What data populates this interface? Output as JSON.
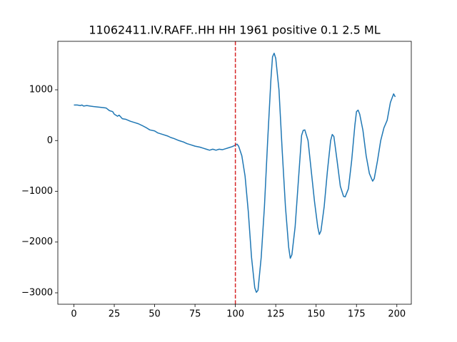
{
  "chart_data": {
    "type": "line",
    "title": "11062411.IV.RAFF..HH HH 1961 positive 0.1 2.5 ML",
    "x": [
      0,
      2,
      4,
      5,
      6,
      8,
      10,
      12,
      15,
      18,
      20,
      22,
      24,
      25,
      27,
      28,
      30,
      32,
      35,
      38,
      40,
      42,
      45,
      47,
      50,
      52,
      55,
      58,
      60,
      62,
      65,
      68,
      70,
      72,
      75,
      78,
      80,
      82,
      84,
      86,
      88,
      90,
      92,
      94,
      96,
      98,
      100,
      101,
      102,
      104,
      106,
      108,
      110,
      112,
      113,
      114,
      116,
      118,
      120,
      122,
      123,
      124,
      125,
      127,
      129,
      131,
      133,
      134,
      135,
      137,
      139,
      141,
      142,
      143,
      145,
      147,
      149,
      151,
      152,
      153,
      155,
      157,
      159,
      160,
      161,
      163,
      165,
      167,
      168,
      170,
      172,
      174,
      175,
      176,
      177,
      179,
      181,
      183,
      185,
      186,
      188,
      190,
      192,
      194,
      196,
      198,
      199
    ],
    "series": [
      {
        "color": "#1f77b4",
        "values": [
          700,
          700,
          690,
          700,
          680,
          690,
          680,
          670,
          660,
          650,
          640,
          590,
          570,
          520,
          480,
          500,
          430,
          420,
          380,
          350,
          330,
          300,
          250,
          210,
          190,
          150,
          120,
          90,
          60,
          40,
          0,
          -30,
          -60,
          -80,
          -110,
          -130,
          -150,
          -170,
          -190,
          -170,
          -190,
          -170,
          -180,
          -160,
          -140,
          -120,
          -90,
          -70,
          -110,
          -300,
          -700,
          -1400,
          -2300,
          -2900,
          -2990,
          -2950,
          -2300,
          -1300,
          0,
          1200,
          1650,
          1720,
          1620,
          1000,
          -200,
          -1300,
          -2100,
          -2320,
          -2250,
          -1700,
          -800,
          100,
          200,
          210,
          0,
          -600,
          -1200,
          -1700,
          -1850,
          -1780,
          -1300,
          -600,
          0,
          120,
          80,
          -400,
          -900,
          -1100,
          -1110,
          -950,
          -400,
          300,
          570,
          600,
          520,
          200,
          -300,
          -650,
          -800,
          -750,
          -400,
          0,
          250,
          400,
          750,
          920,
          860
        ]
      }
    ],
    "vlines": [
      {
        "x": 100,
        "color": "#d62728"
      }
    ],
    "xlim": [
      -9.95,
      208.95
    ],
    "xticks": [
      0,
      25,
      50,
      75,
      100,
      125,
      150,
      175,
      200
    ],
    "ylim": [
      -3225,
      1955
    ],
    "yticks": [
      {
        "value": -3000,
        "label": "−3000"
      },
      {
        "value": -2000,
        "label": "−2000"
      },
      {
        "value": -1000,
        "label": "−1000"
      },
      0,
      1000
    ]
  }
}
